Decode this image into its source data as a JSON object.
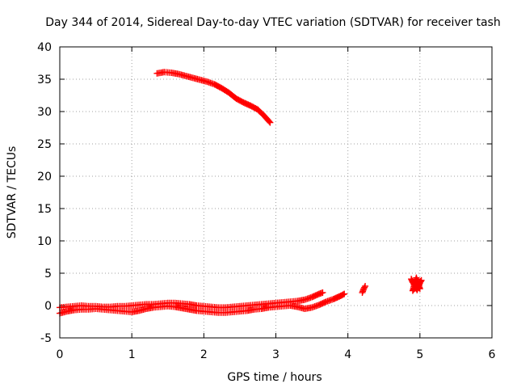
{
  "chart_data": {
    "type": "scatter",
    "title": "Day 344 of 2014, Sidereal Day-to-day VTEC variation (SDTVAR) for receiver tash",
    "xlabel": "GPS time / hours",
    "ylabel": "SDTVAR / TECUs",
    "xlim": [
      0,
      6
    ],
    "ylim": [
      -5,
      40
    ],
    "x_ticks": [
      "0",
      "1",
      "2",
      "3",
      "4",
      "5",
      "6"
    ],
    "y_ticks": [
      "-5",
      "0",
      "5",
      "10",
      "15",
      "20",
      "25",
      "30",
      "35",
      "40"
    ],
    "grid": true,
    "marker": "+",
    "color": "#ff0000",
    "series": [
      {
        "x": [
          1.35,
          1.45,
          1.55,
          1.65,
          1.75,
          1.85,
          1.95,
          2.05,
          2.15,
          2.25,
          2.35,
          2.45,
          2.55,
          2.65,
          2.75,
          2.85,
          2.92
        ],
        "y": [
          35.9,
          36.1,
          36.0,
          35.8,
          35.5,
          35.2,
          34.9,
          34.6,
          34.2,
          33.6,
          32.9,
          32.0,
          31.4,
          30.9,
          30.3,
          29.2,
          28.3
        ]
      },
      {
        "x": [
          0.0,
          0.1,
          0.2,
          0.3,
          0.4,
          0.5,
          0.6,
          0.7,
          0.8,
          0.9,
          1.0,
          1.1,
          1.2,
          1.3,
          1.4,
          1.5,
          1.6,
          1.7,
          1.8,
          1.9,
          2.0,
          2.1,
          2.2,
          2.3,
          2.4,
          2.5,
          2.6,
          2.7,
          2.8,
          2.9,
          3.0,
          3.1,
          3.2,
          3.3,
          3.4,
          3.5,
          3.6,
          3.65
        ],
        "y": [
          -0.3,
          -0.2,
          -0.1,
          0.0,
          -0.1,
          -0.1,
          -0.2,
          -0.2,
          -0.1,
          -0.1,
          0.0,
          0.1,
          0.2,
          0.2,
          0.3,
          0.4,
          0.4,
          0.3,
          0.2,
          0.0,
          -0.1,
          -0.2,
          -0.3,
          -0.3,
          -0.2,
          -0.1,
          0.0,
          0.1,
          0.2,
          0.3,
          0.4,
          0.5,
          0.6,
          0.7,
          0.9,
          1.3,
          1.8,
          2.0
        ]
      },
      {
        "x": [
          0.0,
          0.1,
          0.2,
          0.3,
          0.4,
          0.5,
          0.6,
          0.7,
          0.8,
          0.9,
          1.0,
          1.1,
          1.2,
          1.3,
          1.4,
          1.5,
          1.6,
          1.7,
          1.8,
          1.9,
          2.0,
          2.1,
          2.2,
          2.3,
          2.4,
          2.5,
          2.6,
          2.7,
          2.8,
          2.9,
          3.0,
          3.1,
          3.2,
          3.3,
          3.4,
          3.5,
          3.6,
          3.7,
          3.8,
          3.9,
          3.95
        ],
        "y": [
          -1.2,
          -0.9,
          -0.7,
          -0.6,
          -0.6,
          -0.5,
          -0.6,
          -0.7,
          -0.8,
          -0.9,
          -1.0,
          -0.8,
          -0.5,
          -0.3,
          -0.2,
          -0.1,
          -0.2,
          -0.4,
          -0.6,
          -0.8,
          -0.9,
          -1.0,
          -1.1,
          -1.1,
          -1.0,
          -0.9,
          -0.8,
          -0.6,
          -0.5,
          -0.3,
          -0.2,
          -0.1,
          0.0,
          -0.2,
          -0.5,
          -0.3,
          0.1,
          0.6,
          1.0,
          1.5,
          1.8
        ]
      },
      {
        "x": [
          4.2,
          4.22,
          4.24
        ],
        "y": [
          2.0,
          2.6,
          3.0
        ]
      },
      {
        "x": [
          4.88,
          4.9,
          4.92,
          4.94,
          4.96,
          4.98,
          5.0,
          5.02,
          4.9,
          4.95,
          5.0,
          4.92,
          4.97
        ],
        "y": [
          4.1,
          3.6,
          3.2,
          2.8,
          2.4,
          3.0,
          3.5,
          3.9,
          2.3,
          4.3,
          2.6,
          3.4,
          3.8
        ]
      }
    ]
  }
}
